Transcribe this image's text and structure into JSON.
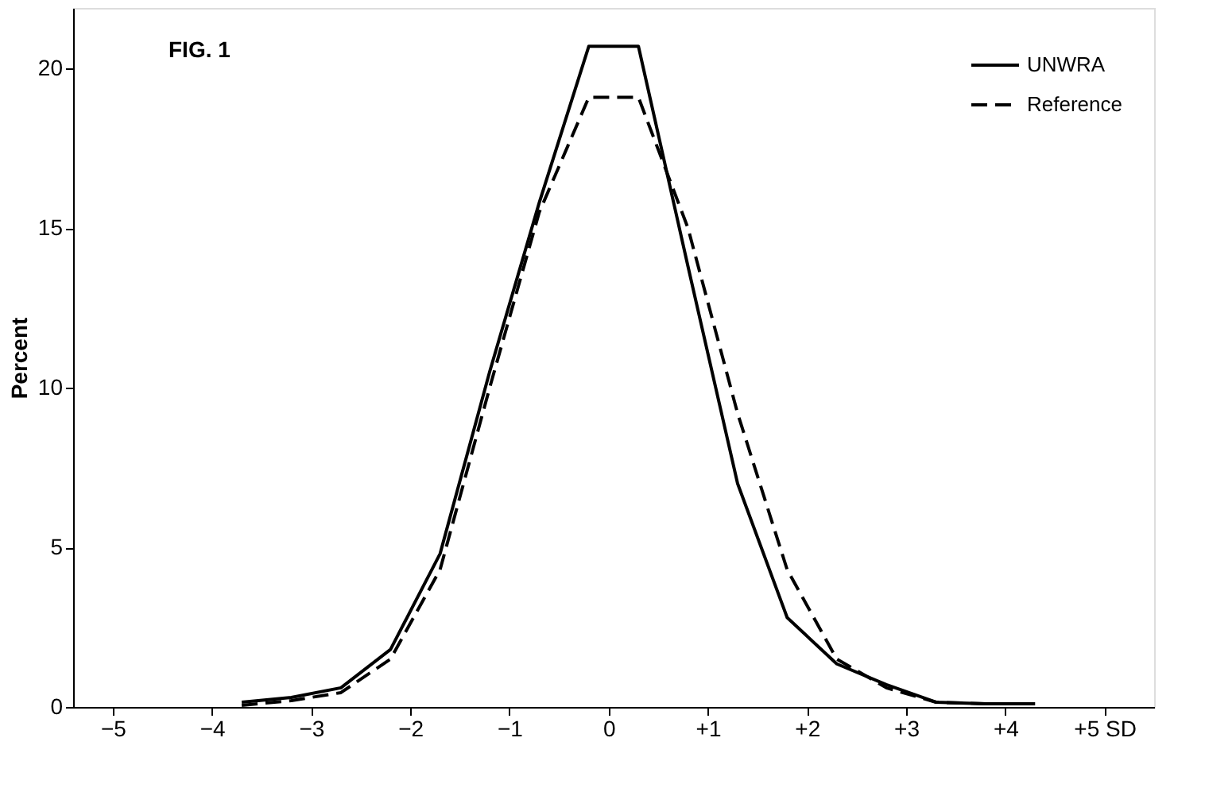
{
  "chart_data": {
    "type": "line",
    "ylabel": "Percent",
    "annotations": [
      "FIG. 1"
    ],
    "xlim": [
      -5.4,
      5.5
    ],
    "ylim": [
      0,
      21.9
    ],
    "xticks": [
      {
        "value": -5,
        "label": "−5"
      },
      {
        "value": -4,
        "label": "−4"
      },
      {
        "value": -3,
        "label": "−3"
      },
      {
        "value": -2,
        "label": "−2"
      },
      {
        "value": -1,
        "label": "−1"
      },
      0,
      {
        "value": 1,
        "label": "+1"
      },
      {
        "value": 2,
        "label": "+2"
      },
      {
        "value": 3,
        "label": "+3"
      },
      {
        "value": 4,
        "label": "+4"
      },
      {
        "value": 5,
        "label": "+5 SD"
      }
    ],
    "yticks": [
      0,
      5,
      10,
      15,
      20
    ],
    "grid": false,
    "legend": "top right",
    "series": [
      {
        "name": "UNWRA",
        "color": "#000000",
        "line_style": "solid",
        "x": [
          -3.7,
          -3.2,
          -2.7,
          -2.2,
          -1.7,
          -1.2,
          -0.7,
          -0.2,
          0.3,
          0.8,
          1.3,
          1.8,
          2.3,
          2.8,
          3.3,
          3.8,
          4.3
        ],
        "values": [
          0.15,
          0.3,
          0.6,
          1.8,
          4.8,
          10.5,
          15.8,
          20.7,
          20.7,
          13.8,
          7.0,
          2.8,
          1.35,
          0.7,
          0.15,
          0.1,
          0.1
        ]
      },
      {
        "name": "Reference",
        "color": "#000000",
        "line_style": "dashed",
        "x": [
          -3.7,
          -3.2,
          -2.7,
          -2.2,
          -1.7,
          -1.2,
          -0.7,
          -0.2,
          0.3,
          0.8,
          1.3,
          1.8,
          2.3,
          2.8,
          3.3,
          3.8,
          4.3
        ],
        "values": [
          0.05,
          0.2,
          0.45,
          1.5,
          4.3,
          10.0,
          15.5,
          19.1,
          19.1,
          15.0,
          9.2,
          4.3,
          1.5,
          0.6,
          0.15,
          0.1,
          0.1
        ]
      }
    ]
  }
}
